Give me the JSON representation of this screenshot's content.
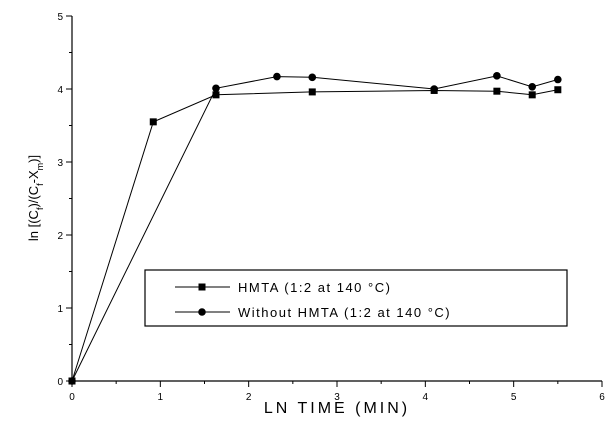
{
  "chart_data": {
    "type": "line",
    "xlabel": "LN TIME (MIN)",
    "ylabel": "ln [(C_f)/(C_f-X_m)]",
    "xlim": [
      0,
      6
    ],
    "ylim": [
      0,
      5
    ],
    "xticks": [
      "0",
      "1",
      "2",
      "3",
      "4",
      "5",
      "6"
    ],
    "yticks": [
      "0",
      "1",
      "2",
      "3",
      "4",
      "5"
    ],
    "grid": false,
    "legend_position": "lower-right",
    "series": [
      {
        "name": "HMTA (1:2 at 140 °C)",
        "marker": "square",
        "color": "#000000",
        "x": [
          0,
          0.92,
          1.63,
          2.72,
          4.1,
          4.81,
          5.21,
          5.5
        ],
        "y": [
          0,
          3.55,
          3.92,
          3.96,
          3.98,
          3.97,
          3.92,
          3.99
        ]
      },
      {
        "name": "Without HMTA (1:2 at 140 °C)",
        "marker": "circle",
        "color": "#000000",
        "x": [
          0,
          1.63,
          2.32,
          2.72,
          4.1,
          4.81,
          5.21,
          5.5
        ],
        "y": [
          0,
          4.01,
          4.17,
          4.16,
          4.0,
          4.18,
          4.03,
          4.13
        ]
      }
    ]
  }
}
